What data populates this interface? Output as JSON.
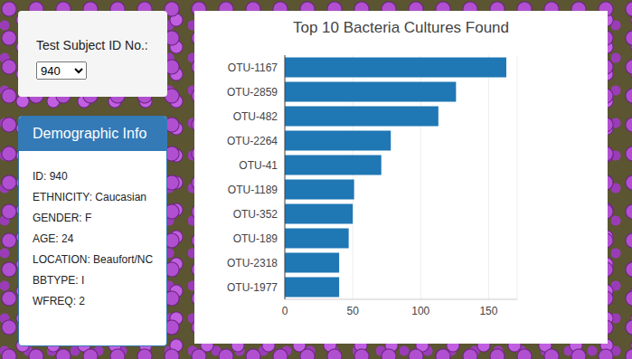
{
  "chart_data": {
    "type": "bar",
    "title": "Top 10 Bacteria Cultures Found",
    "orientation": "horizontal",
    "categories": [
      "OTU-1167",
      "OTU-2859",
      "OTU-482",
      "OTU-2264",
      "OTU-41",
      "OTU-1189",
      "OTU-352",
      "OTU-189",
      "OTU-2318",
      "OTU-1977"
    ],
    "values": [
      163,
      126,
      113,
      78,
      71,
      51,
      50,
      47,
      40,
      40
    ],
    "color": "#1f77b4",
    "xlim": [
      0,
      171
    ],
    "xticks": [
      0,
      50,
      100,
      150
    ],
    "grid": true
  },
  "selector": {
    "label": "Test Subject ID No.:",
    "selected": "940"
  },
  "demographics": {
    "title": "Demographic Info",
    "lines": [
      "ID: 940",
      "ETHNICITY: Caucasian",
      "GENDER: F",
      "AGE: 24",
      "LOCATION: Beaufort/NC",
      "BBTYPE: I",
      "WFREQ: 2"
    ]
  }
}
